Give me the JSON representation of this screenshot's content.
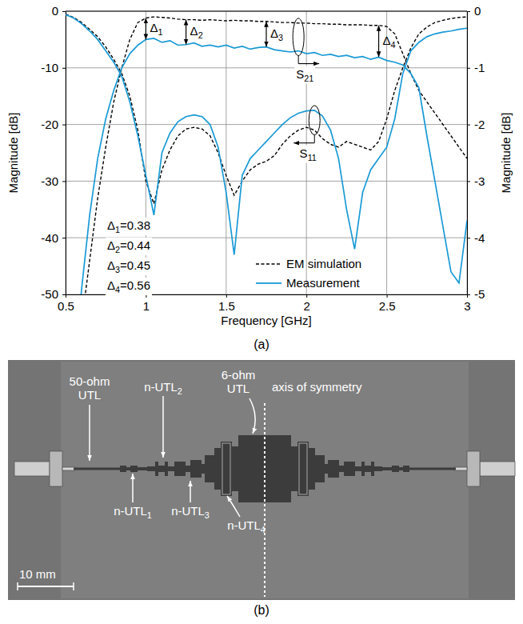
{
  "chart_data": {
    "type": "line",
    "xlabel": "Frequency [GHz]",
    "ylabel": "Magnitude [dB]",
    "y2label": "Magnitude [dB]",
    "caption": "(a)",
    "xlim": [
      0.5,
      3
    ],
    "xticks": [
      0.5,
      1,
      1.5,
      2,
      2.5,
      3
    ],
    "ylim": [
      -50,
      0
    ],
    "yticks": [
      -50,
      -40,
      -30,
      -20,
      -10,
      0
    ],
    "y2lim": [
      -5,
      0
    ],
    "y2ticks": [
      -5,
      -4,
      -3,
      -2,
      -1,
      0
    ],
    "grid": true,
    "legend": "lower center",
    "x": [
      0.5,
      0.55,
      0.6,
      0.65,
      0.7,
      0.75,
      0.8,
      0.85,
      0.9,
      0.95,
      1.0,
      1.05,
      1.1,
      1.15,
      1.2,
      1.25,
      1.3,
      1.35,
      1.4,
      1.45,
      1.5,
      1.55,
      1.6,
      1.65,
      1.7,
      1.75,
      1.8,
      1.85,
      1.9,
      1.95,
      2.0,
      2.05,
      2.1,
      2.15,
      2.2,
      2.25,
      2.3,
      2.35,
      2.4,
      2.45,
      2.5,
      2.55,
      2.6,
      2.65,
      2.7,
      2.75,
      2.8,
      2.85,
      2.9,
      2.95,
      3.0
    ],
    "series": [
      {
        "name": "EM simulation",
        "color": "#000000",
        "line_style": "dashed",
        "values": [
          -0.5,
          -1.1,
          -2.0,
          -3.2,
          -4.5,
          -6.3,
          -8.5,
          -11,
          -15,
          -21,
          -30,
          -34,
          -28,
          -24.5,
          -22,
          -20.8,
          -20.5,
          -20.8,
          -22,
          -25,
          -29,
          -32.5,
          -30,
          -28,
          -27,
          -26.5,
          -25.5,
          -23.5,
          -22,
          -21,
          -20.5,
          -21,
          -22.5,
          -23.5,
          -24,
          -23,
          -23.5,
          -24,
          -24.5,
          -23,
          -19,
          -14,
          -10,
          -6.5,
          -4,
          -2.8,
          -2,
          -1.6,
          -1.3,
          -1.1,
          -1
        ],
        "y2_values": [
          -9,
          -7,
          -5.5,
          -4.4,
          -3.3,
          -2.4,
          -1.6,
          -1.0,
          -0.5,
          -0.2,
          -0.12,
          -0.1,
          -0.11,
          -0.12,
          -0.14,
          -0.15,
          -0.15,
          -0.16,
          -0.15,
          -0.16,
          -0.17,
          -0.16,
          -0.17,
          -0.17,
          -0.18,
          -0.18,
          -0.19,
          -0.2,
          -0.2,
          -0.21,
          -0.21,
          -0.22,
          -0.22,
          -0.23,
          -0.23,
          -0.24,
          -0.24,
          -0.24,
          -0.25,
          -0.25,
          -0.27,
          -0.4,
          -0.75,
          -1.1,
          -1.4,
          -1.6,
          -1.8,
          -2.0,
          -2.2,
          -2.4,
          -2.6
        ]
      },
      {
        "name": "Measurement",
        "color": "#1a9ad6",
        "line_style": "solid",
        "values": [
          -0.6,
          -1.2,
          -2.2,
          -3.5,
          -5,
          -7,
          -9,
          -11.5,
          -16,
          -22,
          -29,
          -36,
          -25,
          -21.5,
          -19.5,
          -18.6,
          -18.3,
          -18.6,
          -20,
          -24,
          -32,
          -43,
          -29,
          -26,
          -24.5,
          -23,
          -21.5,
          -20,
          -18.8,
          -18,
          -17.6,
          -17.5,
          -18.5,
          -21,
          -26,
          -35,
          -42,
          -32,
          -28,
          -26,
          -24,
          -19,
          -11,
          -7,
          -5.5,
          -4.5,
          -4,
          -3.7,
          -3.5,
          -3.2,
          -3
        ],
        "y2_values": [
          -8,
          -6.5,
          -4.9,
          -3.6,
          -2.6,
          -1.9,
          -1.4,
          -1.0,
          -0.75,
          -0.6,
          -0.5,
          -0.48,
          -0.55,
          -0.52,
          -0.6,
          -0.59,
          -0.56,
          -0.62,
          -0.6,
          -0.63,
          -0.6,
          -0.65,
          -0.62,
          -0.67,
          -0.64,
          -0.63,
          -0.68,
          -0.7,
          -0.72,
          -0.7,
          -0.75,
          -0.73,
          -0.78,
          -0.76,
          -0.8,
          -0.78,
          -0.82,
          -0.8,
          -0.85,
          -0.81,
          -0.87,
          -0.9,
          -0.95,
          -1.1,
          -1.35,
          -2.2,
          -3.0,
          -3.8,
          -4.6,
          -4.8,
          -3.7
        ]
      }
    ],
    "annotations": [
      {
        "label": "Δ1",
        "text": "Δ1=0.38",
        "value": 0.38,
        "x": 1.0
      },
      {
        "label": "Δ2",
        "text": "Δ2=0.44",
        "value": 0.44,
        "x": 1.25
      },
      {
        "label": "Δ3",
        "text": "Δ3=0.45",
        "value": 0.45,
        "x": 1.75
      },
      {
        "label": "Δ4",
        "text": "Δ4=0.56",
        "value": 0.56,
        "x": 2.45
      }
    ],
    "curve_labels": [
      {
        "text": "S21",
        "axis": "y2",
        "x": 1.95
      },
      {
        "text": "S11",
        "axis": "y",
        "x": 2.05
      }
    ]
  },
  "photo": {
    "caption": "(b)",
    "labels": [
      "50-ohm UTL",
      "n-UTL2",
      "6-ohm UTL",
      "axis of symmetry",
      "n-UTL1",
      "n-UTL3",
      "n-UTL4"
    ],
    "scale_bar": "10 mm"
  }
}
